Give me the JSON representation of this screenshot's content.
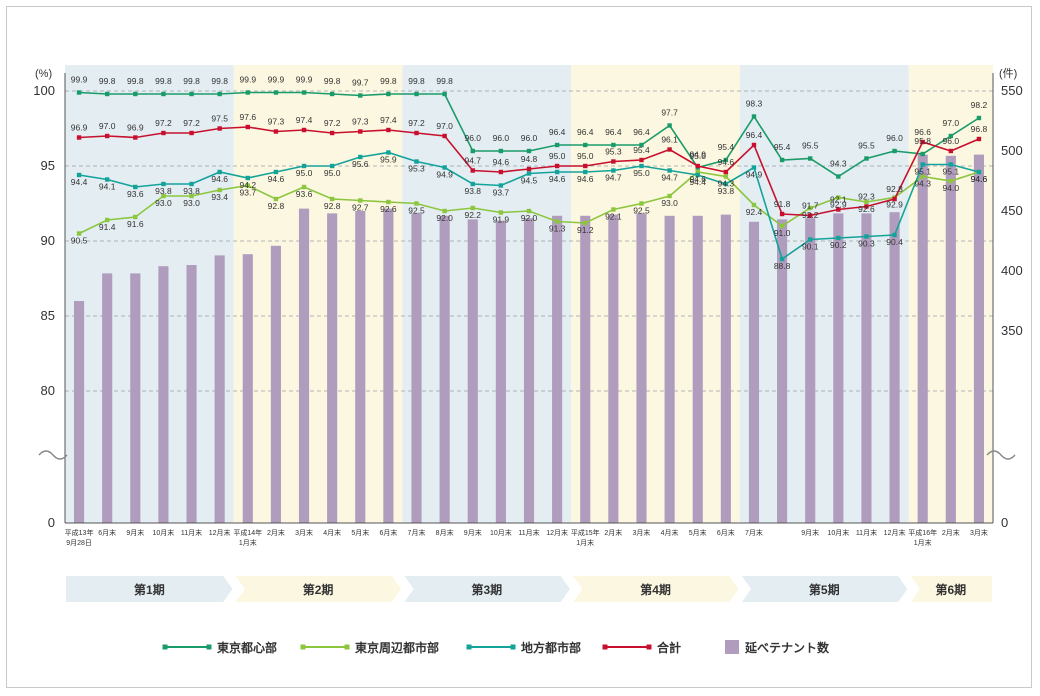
{
  "chart_data": {
    "type": "line",
    "left_axis": {
      "unit": "(%)",
      "ticks": [
        "100",
        "95",
        "90",
        "85",
        "80",
        "0"
      ],
      "range": [
        80,
        100
      ],
      "broken": true
    },
    "right_axis": {
      "unit": "(件)",
      "ticks": [
        "550",
        "500",
        "450",
        "400",
        "350",
        "0"
      ],
      "range": [
        300,
        550
      ],
      "broken": true
    },
    "categories": [
      [
        "平成13年",
        "9月28日"
      ],
      [
        "6月末"
      ],
      [
        "9月末"
      ],
      [
        "10月末"
      ],
      [
        "11月末"
      ],
      [
        "12月末"
      ],
      [
        "平成14年",
        "1月末"
      ],
      [
        "2月末"
      ],
      [
        "3月末"
      ],
      [
        "4月末"
      ],
      [
        "5月末"
      ],
      [
        "6月末"
      ],
      [
        "7月末"
      ],
      [
        "8月末"
      ],
      [
        "9月末"
      ],
      [
        "10月末"
      ],
      [
        "11月末"
      ],
      [
        "12月末"
      ],
      [
        "平成15年",
        "1月末"
      ],
      [
        "2月末"
      ],
      [
        "3月末"
      ],
      [
        "4月末"
      ],
      [
        "5月末"
      ],
      [
        "6月末"
      ],
      [
        "7月末"
      ],
      [
        ""
      ],
      [
        "9月末"
      ],
      [
        "10月末"
      ],
      [
        "11月末"
      ],
      [
        "12月末"
      ],
      [
        "平成16年",
        "1月末"
      ],
      [
        "2月末"
      ],
      [
        "3月末"
      ]
    ],
    "periods": [
      "第1期",
      "第2期",
      "第3期",
      "第4期",
      "第5期",
      "第6期"
    ],
    "series": [
      {
        "name": "東京都心部",
        "color": "#1a9b6a",
        "values": [
          99.9,
          99.8,
          99.8,
          99.8,
          99.8,
          99.8,
          99.9,
          99.9,
          99.9,
          99.8,
          99.7,
          99.8,
          99.8,
          99.8,
          96.0,
          96.0,
          96.0,
          96.4,
          96.4,
          96.4,
          96.4,
          97.7,
          94.9,
          95.4,
          98.3,
          95.4,
          95.5,
          94.3,
          95.5,
          96.0,
          95.8,
          97.0,
          98.2
        ],
        "labels": [
          "99.9",
          "99.8",
          "99.8",
          "99.8",
          "99.8",
          "99.8",
          "99.9",
          "99.9",
          "99.9",
          "99.8",
          "99.7",
          "99.8",
          "99.8",
          "99.8",
          "96.0",
          "96.0",
          "96.0",
          "96.4",
          "96.4",
          "96.4",
          "96.4",
          "97.7",
          "94.9",
          "95.4",
          "98.3",
          "95.4",
          "95.5",
          "94.3",
          "95.5",
          "96.0",
          "95.8",
          "97.0",
          "98.2"
        ]
      },
      {
        "name": "東京周辺都市部",
        "color": "#8cc63e",
        "values": [
          90.5,
          91.4,
          91.6,
          93.0,
          93.0,
          93.4,
          93.7,
          92.8,
          93.6,
          92.8,
          92.7,
          92.6,
          92.5,
          92.0,
          92.2,
          91.9,
          92.0,
          91.3,
          91.2,
          92.1,
          92.5,
          93.0,
          94.6,
          94.3,
          92.4,
          91.0,
          92.2,
          92.9,
          92.6,
          92.9,
          94.3,
          94.0,
          94.6
        ],
        "labels": [
          "90.5",
          "91.4",
          "91.6",
          "93.0",
          "93.0",
          "93.4",
          "93.7",
          "92.8",
          "93.6",
          "92.8",
          "92.7",
          "92.6",
          "92.5",
          "92.0",
          "92.2",
          "91.9",
          "92.0",
          "91.3",
          "91.2",
          "92.1",
          "92.5",
          "93.0",
          "94.6",
          "94.3",
          "92.4",
          "91.0",
          "92.2",
          "92.9",
          "92.6",
          "92.9",
          "94.3",
          "94.0",
          "94.6"
        ]
      },
      {
        "name": "地方都市部",
        "color": "#14a39a",
        "values": [
          94.4,
          94.1,
          93.6,
          93.8,
          93.8,
          94.6,
          94.2,
          94.6,
          95.0,
          95.0,
          95.6,
          95.9,
          95.3,
          94.9,
          93.8,
          93.7,
          94.5,
          94.6,
          94.6,
          94.7,
          95.0,
          94.7,
          94.4,
          93.8,
          94.9,
          88.8,
          90.1,
          90.2,
          90.3,
          90.4,
          95.1,
          95.1,
          94.6
        ],
        "labels": [
          "94.4",
          "94.1",
          "93.6",
          "93.8",
          "93.8",
          "94.6",
          "94.2",
          "94.6",
          "95.0",
          "95.0",
          "95.6",
          "95.9",
          "95.3",
          "94.9",
          "93.8",
          "93.7",
          "94.5",
          "94.6",
          "94.6",
          "94.7",
          "95.0",
          "94.7",
          "94.4",
          "93.8",
          "94.9",
          "88.8",
          "90.1",
          "90.2",
          "90.3",
          "90.4",
          "95.1",
          "95.1",
          "94.6"
        ]
      },
      {
        "name": "合計",
        "color": "#c8102e",
        "values": [
          96.9,
          97.0,
          96.9,
          97.2,
          97.2,
          97.5,
          97.6,
          97.3,
          97.4,
          97.2,
          97.3,
          97.4,
          97.2,
          97.0,
          94.7,
          94.6,
          94.8,
          95.0,
          95.0,
          95.3,
          95.4,
          96.1,
          95.0,
          94.6,
          96.4,
          91.8,
          91.7,
          92.1,
          92.3,
          92.8,
          96.6,
          96.0,
          96.8
        ],
        "labels": [
          "96.9",
          "97.0",
          "96.9",
          "97.2",
          "97.2",
          "97.5",
          "97.6",
          "97.3",
          "97.4",
          "97.2",
          "97.3",
          "97.4",
          "97.2",
          "97.0",
          "94.7",
          "94.6",
          "94.8",
          "95.0",
          "95.0",
          "95.3",
          "95.4",
          "96.1",
          "95.0",
          "94.6",
          "96.4",
          "91.8",
          "91.7",
          "92.1",
          "92.3",
          "92.8",
          "96.6",
          "96.0",
          "96.8"
        ]
      },
      {
        "name": "延べテナント数",
        "color": "#b09cbd",
        "kind": "bar",
        "axis": "right",
        "values": [
          375,
          398,
          398,
          404,
          405,
          413,
          414,
          421,
          452,
          448,
          450,
          452,
          448,
          446,
          443,
          442,
          444,
          446,
          446,
          447,
          448,
          446,
          446,
          447,
          441,
          443,
          444,
          448,
          448,
          449,
          497,
          496,
          497
        ]
      }
    ]
  }
}
